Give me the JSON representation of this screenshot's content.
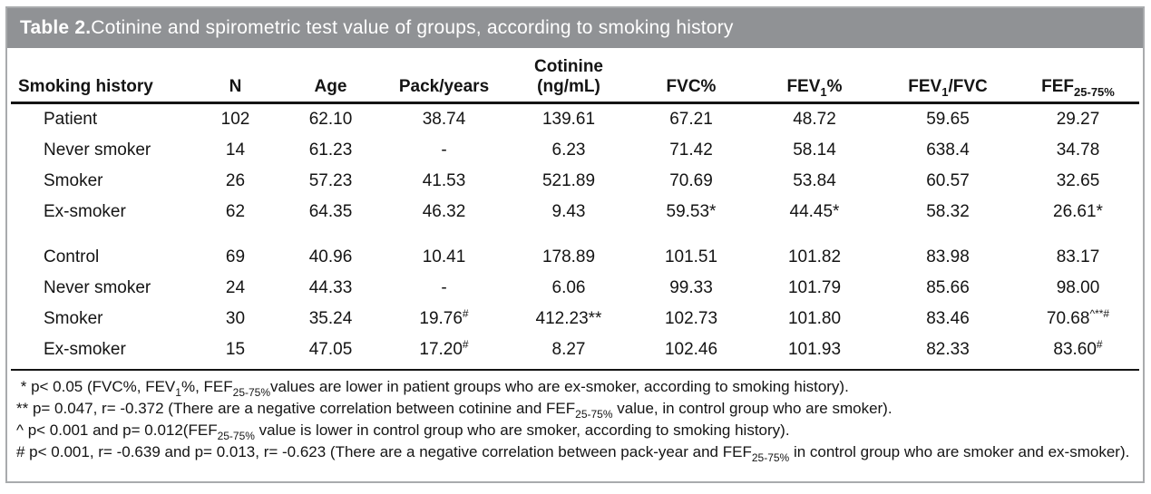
{
  "title": {
    "label": "Table 2.",
    "rest": " Cotinine and spirometric test value of groups, according to smoking history"
  },
  "colors": {
    "title_bar_bg": "#909295",
    "title_text": "#ffffff",
    "frame_border": "#a9abad",
    "rule": "#141414"
  },
  "table": {
    "columns": [
      {
        "id": "smoking-history",
        "label": [
          {
            "t": "Smoking history"
          }
        ]
      },
      {
        "id": "n",
        "label": [
          {
            "t": "N"
          }
        ]
      },
      {
        "id": "age",
        "label": [
          {
            "t": "Age"
          }
        ]
      },
      {
        "id": "pack-years",
        "label": [
          {
            "t": "Pack/years"
          }
        ]
      },
      {
        "id": "cotinine",
        "label": [
          {
            "t": "Cotinine"
          },
          {
            "s": "br"
          },
          {
            "t": "(ng/mL)"
          }
        ]
      },
      {
        "id": "fvc-percent",
        "label": [
          {
            "t": "FVC%"
          }
        ]
      },
      {
        "id": "fev1-percent",
        "label": [
          {
            "t": "FEV"
          },
          {
            "t": "1",
            "s": "sub"
          },
          {
            "t": "%"
          }
        ]
      },
      {
        "id": "fev1-fvc",
        "label": [
          {
            "t": "FEV"
          },
          {
            "t": "1",
            "s": "sub"
          },
          {
            "t": "/FVC"
          }
        ]
      },
      {
        "id": "fef25-75",
        "label": [
          {
            "t": "FEF"
          },
          {
            "t": "25-75%",
            "s": "sub"
          }
        ]
      }
    ],
    "rows": [
      {
        "group_start": false,
        "cells": [
          "Patient",
          "102",
          "62.10",
          "38.74",
          "139.61",
          "67.21",
          "48.72",
          "59.65",
          "29.27"
        ]
      },
      {
        "group_start": false,
        "cells": [
          "Never smoker",
          "14",
          "61.23",
          "-",
          "6.23",
          "71.42",
          "58.14",
          "638.4",
          "34.78"
        ]
      },
      {
        "group_start": false,
        "cells": [
          "Smoker",
          "26",
          "57.23",
          "41.53",
          "521.89",
          "70.69",
          "53.84",
          "60.57",
          "32.65"
        ]
      },
      {
        "group_start": false,
        "cells": [
          "Ex-smoker",
          "62",
          "64.35",
          "46.32",
          "9.43",
          "59.53*",
          "44.45*",
          "58.32",
          "26.61*"
        ]
      },
      {
        "group_start": true,
        "cells": [
          "Control",
          "69",
          "40.96",
          "10.41",
          "178.89",
          "101.51",
          "101.82",
          "83.98",
          "83.17"
        ]
      },
      {
        "group_start": false,
        "cells": [
          "Never smoker",
          "24",
          "44.33",
          "-",
          "6.06",
          "99.33",
          "101.79",
          "85.66",
          "98.00"
        ]
      },
      {
        "group_start": false,
        "cells": [
          "Smoker",
          "30",
          "35.24",
          [
            {
              "t": "19.76"
            },
            {
              "t": "#",
              "s": "sup"
            }
          ],
          "412.23**",
          "102.73",
          "101.80",
          "83.46",
          [
            {
              "t": "70.68"
            },
            {
              "t": "^**#",
              "s": "sup"
            }
          ]
        ]
      },
      {
        "group_start": false,
        "cells": [
          "Ex-smoker",
          "15",
          "47.05",
          [
            {
              "t": "17.20"
            },
            {
              "t": "#",
              "s": "sup"
            }
          ],
          "8.27",
          "102.46",
          "101.93",
          "82.33",
          [
            {
              "t": "83.60"
            },
            {
              "t": "#",
              "s": "sup"
            }
          ]
        ]
      }
    ]
  },
  "footnotes": [
    [
      {
        "t": " * p< 0.05 (FVC%, FEV"
      },
      {
        "t": "1",
        "s": "sub"
      },
      {
        "t": "%, FEF"
      },
      {
        "t": "25-75%",
        "s": "sub"
      },
      {
        "t": "values are lower in patient groups who are ex-smoker, according to smoking history)."
      }
    ],
    [
      {
        "t": "** p= 0.047, r= -0.372 (There are a negative correlation between cotinine and FEF"
      },
      {
        "t": "25-75%",
        "s": "sub"
      },
      {
        "t": " value, in control group who are smoker)."
      }
    ],
    [
      {
        "t": "^ p< 0.001 and p= 0.012(FEF"
      },
      {
        "t": "25-75%",
        "s": "sub"
      },
      {
        "t": " value is lower in control group who are smoker, according to smoking history)."
      }
    ],
    [
      {
        "t": "# p< 0.001, r= -0.639 and p= 0.013, r= -0.623 (There are a negative correlation between pack-year and FEF"
      },
      {
        "t": "25-75%",
        "s": "sub"
      },
      {
        "t": " in control group who are smoker and ex-smoker)."
      }
    ]
  ]
}
